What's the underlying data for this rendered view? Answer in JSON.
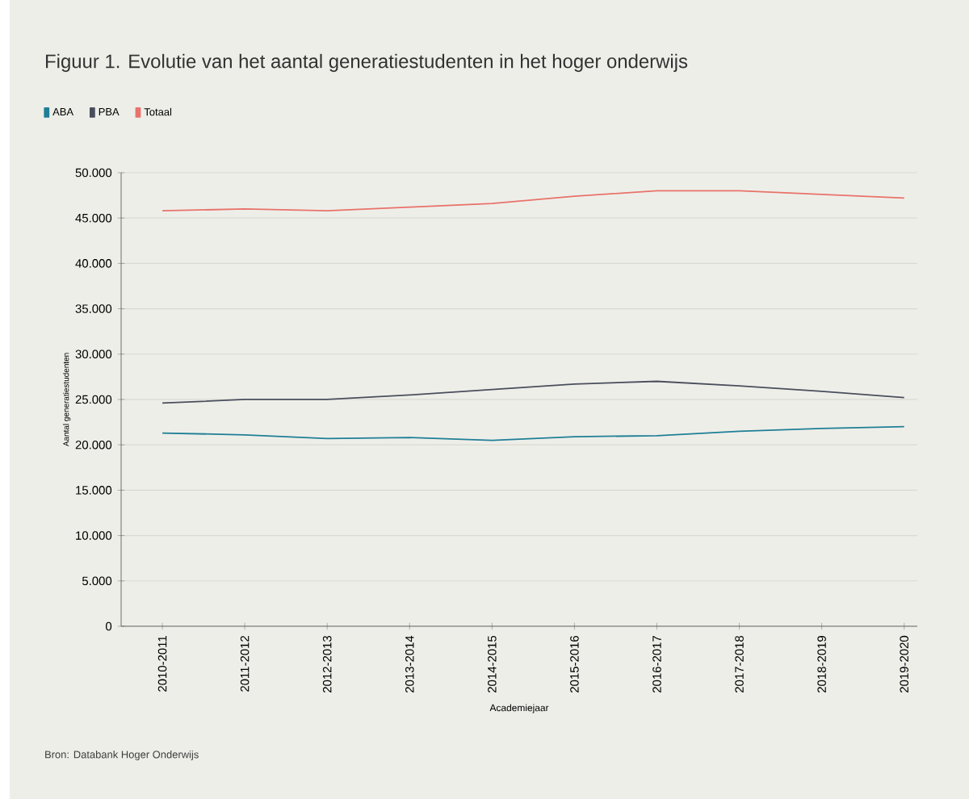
{
  "chart_data": {
    "type": "line",
    "title": "Figuur 1. Evolutie van het aantal generatiestudenten in het hoger onderwijs",
    "xlabel": "Academiejaar",
    "ylabel": "Aantal generatiestudenten",
    "categories": [
      "2010-2011",
      "2011-2012",
      "2012-2013",
      "2013-2014",
      "2014-2015",
      "2015-2016",
      "2016-2017",
      "2017-2018",
      "2018-2019",
      "2019-2020"
    ],
    "series": [
      {
        "name": "ABA",
        "color": "#1f7f96",
        "values": [
          21300,
          21100,
          20700,
          20800,
          20500,
          20900,
          21000,
          21500,
          21800,
          22000
        ]
      },
      {
        "name": "PBA",
        "color": "#4a4e5c",
        "values": [
          24600,
          25000,
          25000,
          25500,
          26100,
          26700,
          27000,
          26500,
          25900,
          25200
        ]
      },
      {
        "name": "Totaal",
        "color": "#e8736a",
        "values": [
          45800,
          46000,
          45800,
          46200,
          46600,
          47400,
          48000,
          48000,
          47600,
          47200
        ]
      }
    ],
    "ylim": [
      0,
      50000
    ],
    "yticks": [
      {
        "value": 0,
        "label": "0"
      },
      {
        "value": 5000,
        "label": "5.000"
      },
      {
        "value": 10000,
        "label": "10.000"
      },
      {
        "value": 15000,
        "label": "15.000"
      },
      {
        "value": 20000,
        "label": "20.000"
      },
      {
        "value": 25000,
        "label": "25.000"
      },
      {
        "value": 30000,
        "label": "30.000"
      },
      {
        "value": 35000,
        "label": "35.000"
      },
      {
        "value": 40000,
        "label": "40.000"
      },
      {
        "value": 45000,
        "label": "45.000"
      },
      {
        "value": 50000,
        "label": "50.000"
      }
    ],
    "grid": "y",
    "legend": "top left",
    "marker": "none",
    "line_style": "solid",
    "annotations": [
      "Bron: Databank Hoger Onderwijs"
    ]
  }
}
